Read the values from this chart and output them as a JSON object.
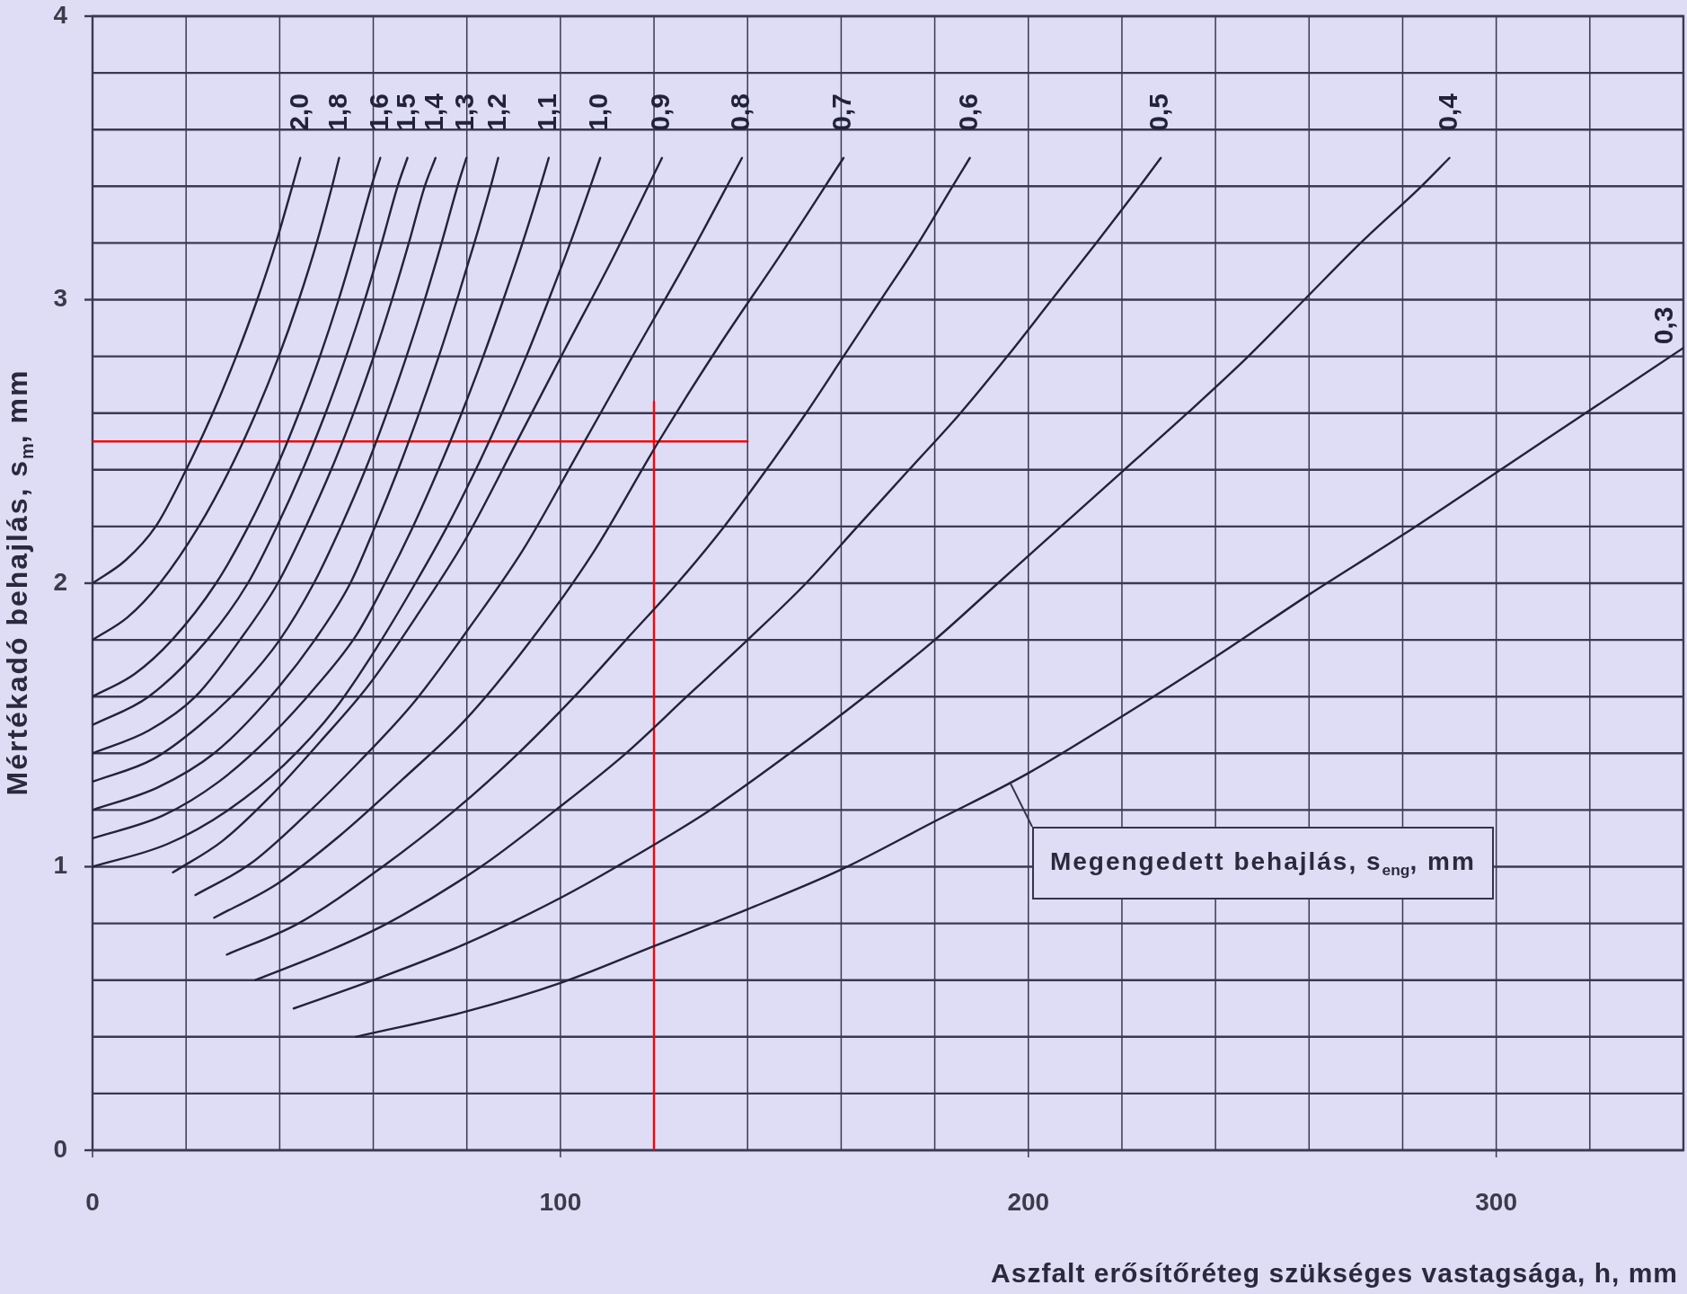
{
  "chart_data": {
    "type": "line",
    "xlabel": "Aszfalt erősítőréteg szükséges vastagsága, h, mm",
    "ylabel": "Mértékadó behajlás, s$_{m}$, mm",
    "xlim": [
      0,
      340
    ],
    "xticks": [
      0,
      {
        "value": 20,
        "label": null
      },
      {
        "value": 40,
        "label": null
      },
      {
        "value": 60,
        "label": null
      },
      {
        "value": 80,
        "label": null
      },
      100,
      {
        "value": 120,
        "label": null
      },
      {
        "value": 140,
        "label": null
      },
      {
        "value": 160,
        "label": null
      },
      {
        "value": 180,
        "label": null
      },
      200,
      {
        "value": 220,
        "label": null
      },
      {
        "value": 240,
        "label": null
      },
      {
        "value": 260,
        "label": null
      },
      {
        "value": 280,
        "label": null
      },
      300,
      {
        "value": 320,
        "label": null
      },
      {
        "value": 340,
        "label": null
      }
    ],
    "ylim": [
      0,
      4
    ],
    "yticks": [
      0,
      {
        "value": 0.2,
        "label": null
      },
      {
        "value": 0.4,
        "label": null
      },
      {
        "value": 0.6,
        "label": null
      },
      {
        "value": 0.8,
        "label": null
      },
      1,
      {
        "value": 1.2,
        "label": null
      },
      {
        "value": 1.4,
        "label": null
      },
      {
        "value": 1.6,
        "label": null
      },
      {
        "value": 1.8,
        "label": null
      },
      2,
      {
        "value": 2.2,
        "label": null
      },
      {
        "value": 2.4,
        "label": null
      },
      {
        "value": 2.6,
        "label": null
      },
      {
        "value": 2.8,
        "label": null
      },
      3,
      {
        "value": 3.2,
        "label": null
      },
      {
        "value": 3.4,
        "label": null
      },
      {
        "value": 3.6,
        "label": null
      },
      {
        "value": 3.8,
        "label": null
      },
      4
    ],
    "grid": true,
    "marker": "none",
    "line_style": "solid",
    "annotations": [
      {
        "text": "Megengedett behajlás, s$_{eng}$, mm",
        "x": 196,
        "y": 1.3
      }
    ],
    "series": [
      {
        "name": "2,0",
        "color": "#22223a",
        "x": [
          0,
          7,
          13.5,
          20,
          25.7,
          30.7,
          35.2,
          39.2,
          42.7,
          44.4
        ],
        "values": [
          2.0,
          2.08,
          2.2,
          2.4,
          2.6,
          2.8,
          3.0,
          3.2,
          3.4,
          3.5
        ]
      },
      {
        "name": "1,8",
        "color": "#22223a",
        "x": [
          0,
          7.5,
          14.4,
          22.7,
          29.3,
          34.9,
          39.8,
          44.1,
          47.9,
          51.2,
          52.7
        ],
        "values": [
          1.8,
          1.88,
          2.0,
          2.2,
          2.4,
          2.6,
          2.8,
          3.0,
          3.2,
          3.4,
          3.5
        ]
      },
      {
        "name": "1,6",
        "color": "#22223a",
        "x": [
          0,
          9,
          17,
          26.4,
          33.3,
          39.1,
          44.1,
          48.6,
          52.6,
          56.2,
          59.6,
          61.5
        ],
        "values": [
          1.6,
          1.68,
          1.8,
          2.0,
          2.2,
          2.4,
          2.6,
          2.8,
          3.0,
          3.2,
          3.4,
          3.5
        ]
      },
      {
        "name": "1,5",
        "color": "#22223a",
        "x": [
          0,
          12,
          24.5,
          33.2,
          39.4,
          44.9,
          49.8,
          54.2,
          58.2,
          61.8,
          65.2,
          67.3
        ],
        "values": [
          1.5,
          1.6,
          1.8,
          2.0,
          2.2,
          2.4,
          2.6,
          2.8,
          3.0,
          3.2,
          3.4,
          3.5
        ]
      },
      {
        "name": "1,4",
        "color": "#22223a",
        "x": [
          0,
          12,
          22,
          31.5,
          39.6,
          45.6,
          51.0,
          55.8,
          60.1,
          64.0,
          67.6,
          71.0,
          73.3
        ],
        "values": [
          1.4,
          1.48,
          1.6,
          1.8,
          2.0,
          2.2,
          2.4,
          2.6,
          2.8,
          3.0,
          3.2,
          3.4,
          3.5
        ]
      },
      {
        "name": "1,3",
        "color": "#22223a",
        "x": [
          0,
          13,
          23,
          32,
          40,
          47.3,
          53.1,
          58.3,
          62.9,
          67.1,
          71.0,
          74.6,
          78.0,
          79.9
        ],
        "values": [
          1.3,
          1.38,
          1.5,
          1.64,
          1.8,
          2.0,
          2.2,
          2.4,
          2.6,
          2.8,
          3.0,
          3.2,
          3.4,
          3.5
        ]
      },
      {
        "name": "1,2",
        "color": "#22223a",
        "x": [
          0,
          14,
          26,
          37,
          47.5,
          55.1,
          60.4,
          65.3,
          69.8,
          74.0,
          77.9,
          81.6,
          85.1,
          86.7
        ],
        "values": [
          1.2,
          1.28,
          1.4,
          1.58,
          1.8,
          2.0,
          2.2,
          2.4,
          2.6,
          2.8,
          3.0,
          3.2,
          3.4,
          3.5
        ]
      },
      {
        "name": "1,1",
        "color": "#22223a",
        "x": [
          0,
          15,
          27,
          38,
          48,
          56.5,
          62.5,
          68.5,
          73.9,
          78.9,
          83.5,
          87.8,
          91.9,
          95.7,
          97.5
        ],
        "values": [
          1.1,
          1.18,
          1.3,
          1.46,
          1.64,
          1.82,
          2.0,
          2.2,
          2.4,
          2.6,
          2.8,
          3.0,
          3.2,
          3.4,
          3.5
        ]
      },
      {
        "name": "1,0",
        "color": "#22223a",
        "x": [
          0,
          16,
          29,
          41,
          52,
          61,
          69,
          75.8,
          81.9,
          87.5,
          92.7,
          97.5,
          102.1,
          106.4,
          108.5
        ],
        "values": [
          1.0,
          1.08,
          1.2,
          1.36,
          1.56,
          1.78,
          2.0,
          2.2,
          2.4,
          2.6,
          2.8,
          3.0,
          3.2,
          3.4,
          3.5
        ]
      },
      {
        "name": "0,9",
        "color": "#22223a",
        "x": [
          17.2,
          27.7,
          38.1,
          48.6,
          59,
          69.5,
          79.9,
          90.4,
          100.8,
          111.3,
          121.7
        ],
        "values": [
          0.98,
          1.09,
          1.25,
          1.44,
          1.64,
          1.89,
          2.16,
          2.49,
          2.82,
          3.15,
          3.5
        ]
      },
      {
        "name": "0,8",
        "color": "#22223a",
        "x": [
          22,
          33.7,
          45.4,
          57,
          68.7,
          80.4,
          92.1,
          103.8,
          115.4,
          127.1,
          138.8
        ],
        "values": [
          0.9,
          1.01,
          1.18,
          1.37,
          1.58,
          1.84,
          2.12,
          2.46,
          2.8,
          3.14,
          3.5
        ]
      },
      {
        "name": "0,7",
        "color": "#22223a",
        "x": [
          26,
          39.5,
          52.9,
          66.4,
          79.8,
          93.3,
          106.7,
          121,
          134,
          147.5,
          160.5
        ],
        "values": [
          0.82,
          0.94,
          1.11,
          1.31,
          1.52,
          1.79,
          2.1,
          2.5,
          2.84,
          3.17,
          3.5
        ]
      },
      {
        "name": "0,6",
        "color": "#22223a",
        "x": [
          28.7,
          44,
          62,
          77.5,
          91,
          103,
          114,
          125,
          135,
          144,
          152.5,
          160.5,
          168.5,
          176.5,
          183.8,
          187.5
        ],
        "values": [
          0.69,
          0.8,
          1.0,
          1.2,
          1.4,
          1.6,
          1.8,
          2.0,
          2.2,
          2.4,
          2.6,
          2.8,
          3.0,
          3.2,
          3.4,
          3.5
        ]
      },
      {
        "name": "0,5",
        "color": "#22223a",
        "x": [
          34.8,
          50,
          63,
          83,
          99,
          114,
          127,
          140,
          152.5,
          163.5,
          174.5,
          185.5,
          195.5,
          205,
          214.5,
          223.8,
          228.3
        ],
        "values": [
          0.6,
          0.7,
          0.8,
          1.0,
          1.2,
          1.4,
          1.6,
          1.8,
          2.0,
          2.2,
          2.4,
          2.6,
          2.8,
          3.0,
          3.2,
          3.4,
          3.5
        ]
      },
      {
        "name": "0,4",
        "color": "#22223a",
        "x": [
          43,
          60,
          80,
          100,
          112,
          132,
          149,
          165,
          180,
          193.5,
          207,
          220.5,
          234,
          247,
          259,
          271,
          284,
          290
        ],
        "values": [
          0.5,
          0.6,
          0.73,
          0.89,
          1.0,
          1.2,
          1.4,
          1.6,
          1.8,
          2.0,
          2.2,
          2.4,
          2.6,
          2.8,
          3.0,
          3.2,
          3.4,
          3.5
        ]
      },
      {
        "name": "0,3",
        "color": "#22223a",
        "x": [
          56.3,
          80,
          100,
          120,
          140,
          160,
          180,
          200,
          220,
          240,
          260,
          280,
          300,
          320,
          340
        ],
        "values": [
          0.4,
          0.49,
          0.59,
          0.72,
          0.85,
          0.99,
          1.16,
          1.33,
          1.53,
          1.74,
          1.96,
          2.17,
          2.39,
          2.61,
          2.83
        ]
      },
      {
        "color": "#ff0000",
        "x": [
          0,
          140
        ],
        "values": [
          2.5,
          2.5
        ]
      },
      {
        "color": "#ff0000",
        "x": [
          120,
          120
        ],
        "values": [
          0,
          2.64
        ]
      }
    ]
  }
}
